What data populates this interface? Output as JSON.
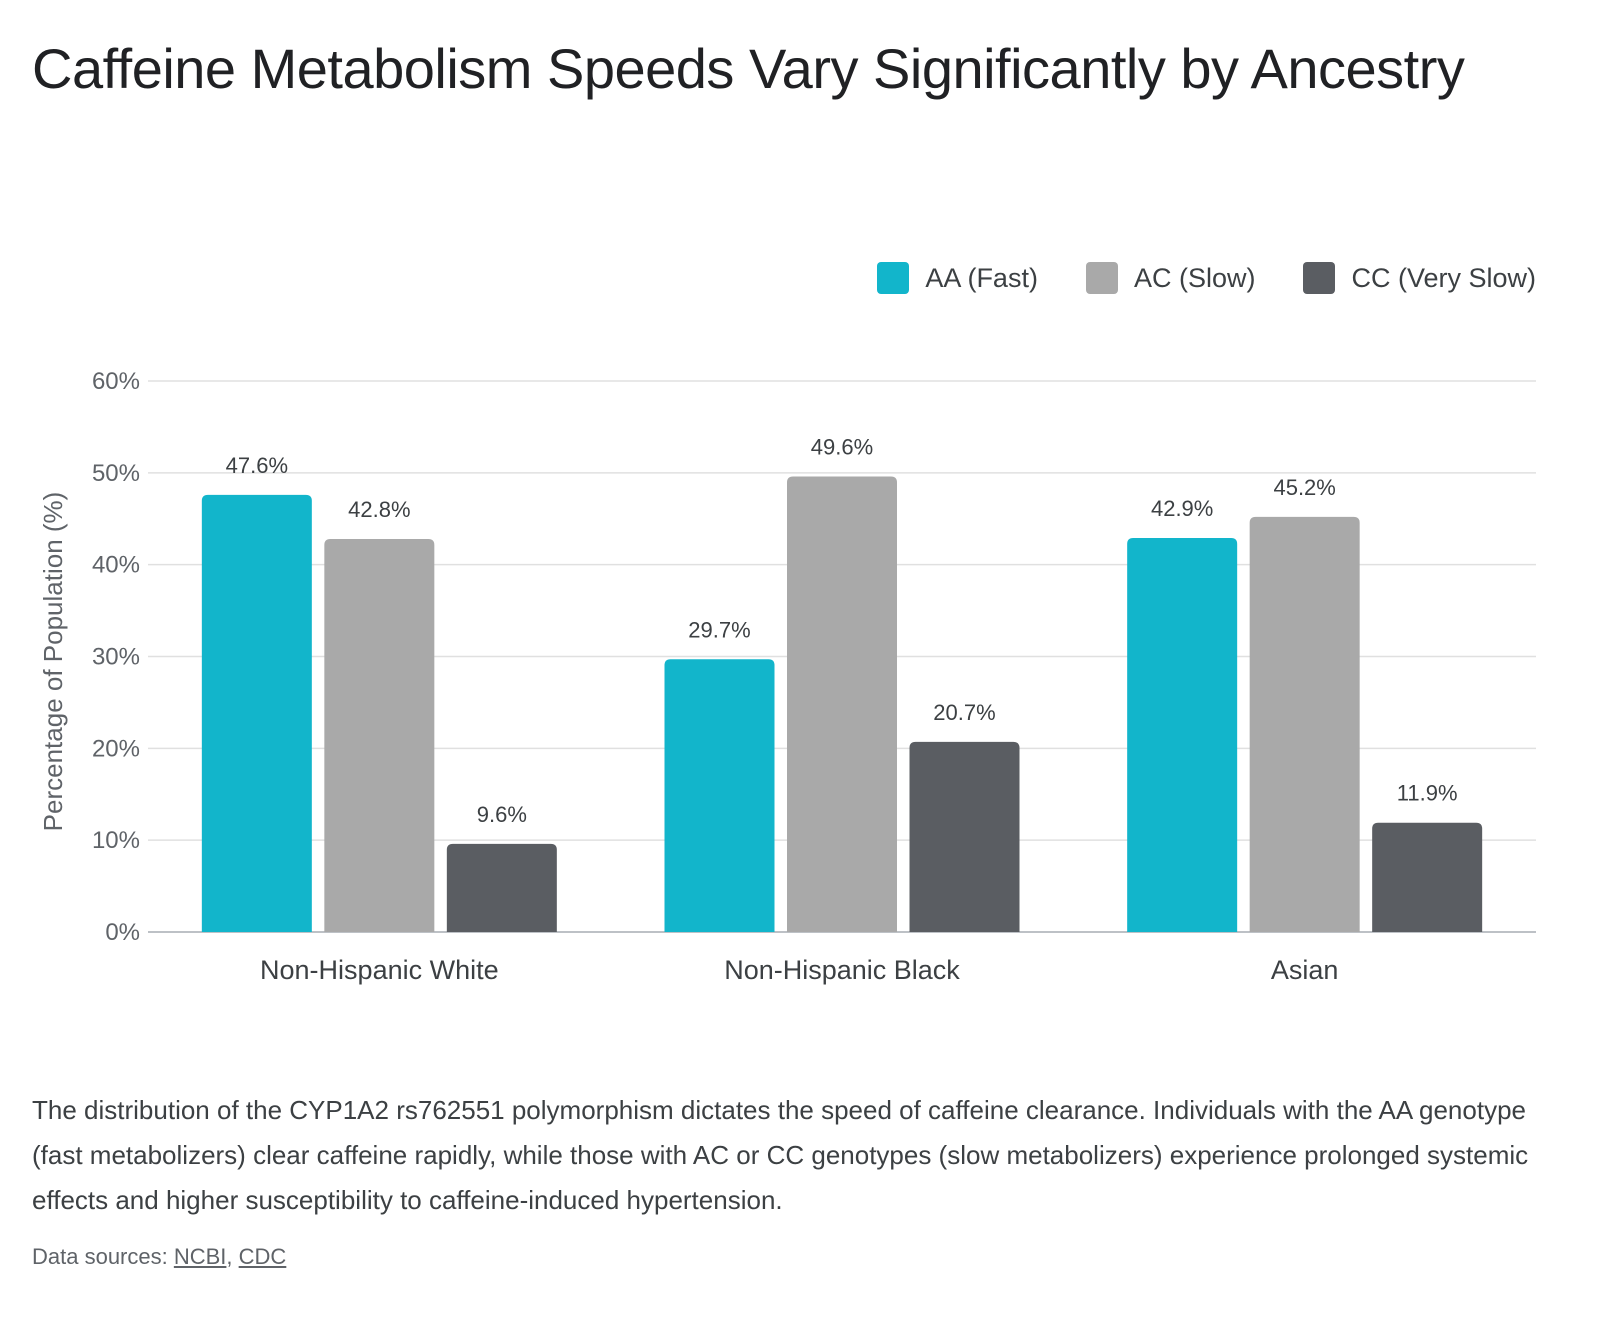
{
  "title": "Caffeine Metabolism Speeds Vary Significantly by Ancestry",
  "caption": "The distribution of the CYP1A2 rs762551 polymorphism dictates the speed of caffeine clearance. Individuals with the AA genotype (fast metabolizers) clear caffeine rapidly, while those with AC or CC genotypes (slow metabolizers) experience prolonged systemic effects and higher susceptibility to caffeine-induced hypertension.",
  "sources": {
    "prefix": "Data sources: ",
    "links": [
      "NCBI",
      "CDC"
    ],
    "separator": ", "
  },
  "chart_data": {
    "type": "bar",
    "title": "Caffeine Metabolism Speeds Vary Significantly by Ancestry",
    "xlabel": "",
    "ylabel": "Percentage of Population (%)",
    "categories": [
      "Non-Hispanic White",
      "Non-Hispanic Black",
      "Asian"
    ],
    "series": [
      {
        "name": "AA (Fast)",
        "color": "#12b5cb",
        "values": [
          47.6,
          29.7,
          42.9
        ],
        "labels": [
          "47.6%",
          "29.7%",
          "42.9%"
        ]
      },
      {
        "name": "AC (Slow)",
        "color": "#a9a9a9",
        "values": [
          42.8,
          49.6,
          45.2
        ],
        "labels": [
          "42.8%",
          "49.6%",
          "45.2%"
        ]
      },
      {
        "name": "CC (Very Slow)",
        "color": "#5a5d62",
        "values": [
          9.6,
          20.7,
          11.9
        ],
        "labels": [
          "9.6%",
          "20.7%",
          "11.9%"
        ]
      }
    ],
    "ylim": [
      0,
      60
    ],
    "yticks": [
      0,
      10,
      20,
      30,
      40,
      50,
      60
    ],
    "ytick_labels": [
      "0%",
      "10%",
      "20%",
      "30%",
      "40%",
      "50%",
      "60%"
    ],
    "grid": true,
    "legend": "top-right"
  }
}
